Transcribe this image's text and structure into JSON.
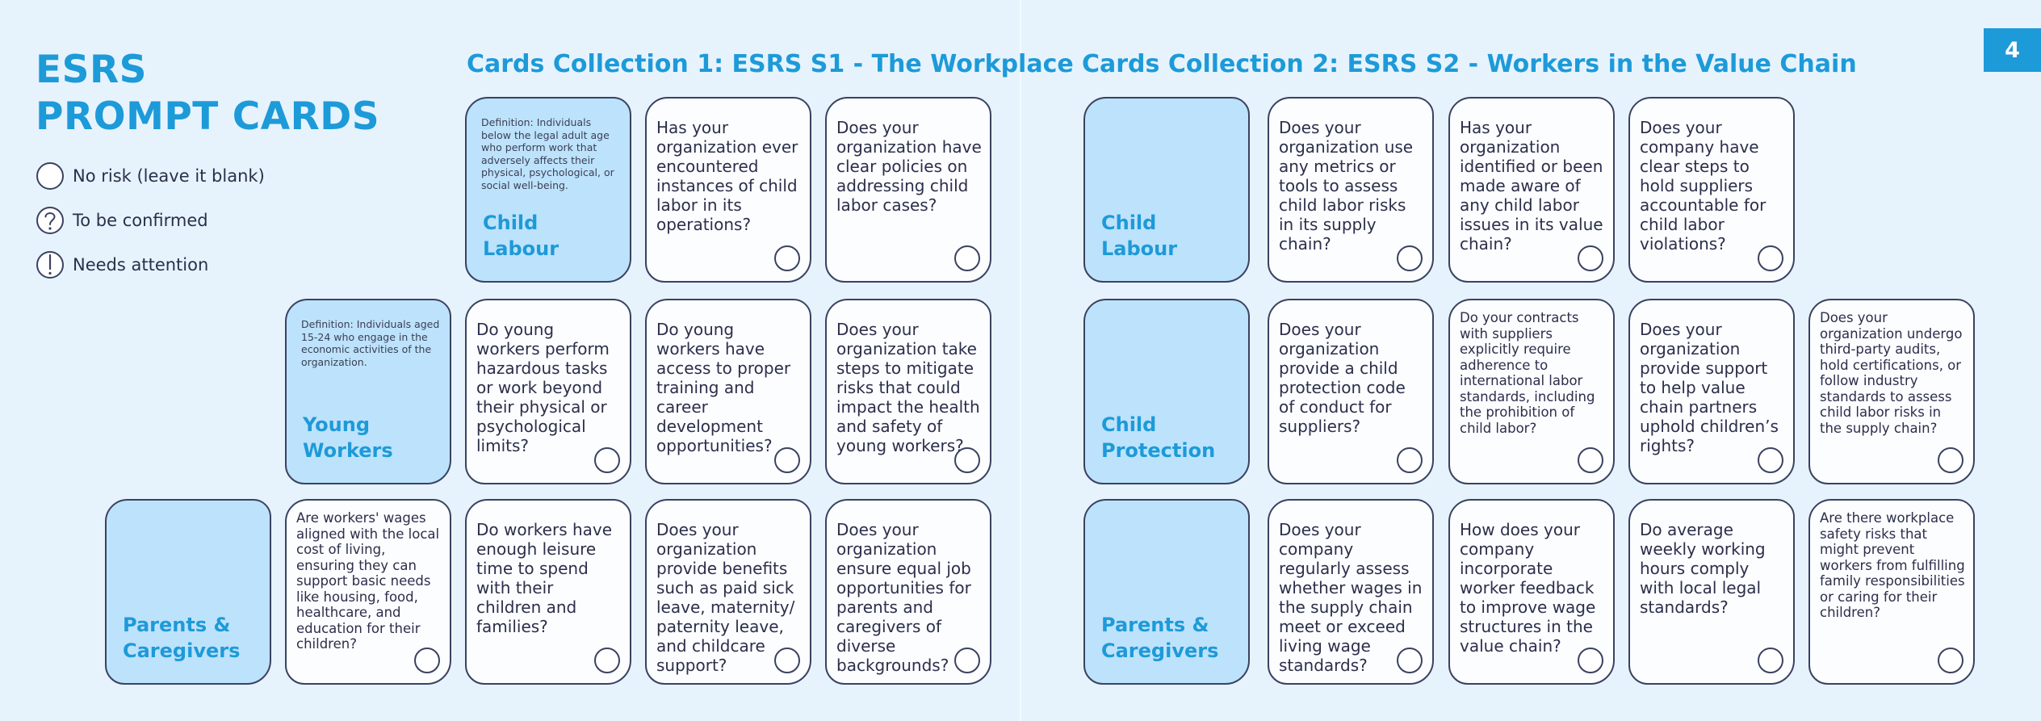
{
  "page_number": "4",
  "title": {
    "line1": "ESRS",
    "line2": "PROMPT CARDS"
  },
  "legend": [
    {
      "icon": "empty-circle-icon",
      "label": "No risk (leave it blank)"
    },
    {
      "icon": "question-circle-icon",
      "label": "To be confirmed"
    },
    {
      "icon": "exclamation-circle-icon",
      "label": "Needs attention"
    }
  ],
  "collection1": {
    "title": "Cards Collection 1: ESRS S1 - The Workplace",
    "rows": [
      {
        "category": "Child\nLabour",
        "definition": "Definition: Individuals below the legal adult age who perform work that adversely affects their physical, psychological, or social well-being.",
        "questions": [
          "Has your organization ever encountered instances of child labor in its operations?",
          "Does your organization have clear policies on addressing child labor cases?"
        ]
      },
      {
        "category": "Young\nWorkers",
        "definition": "Definition: Individuals aged 15-24 who engage in the economic activities of the organization.",
        "questions": [
          "Do young workers perform hazardous tasks or work beyond their physical or psychological limits?",
          "Do young workers have access to proper training and career development opportunities?",
          "Does your organization take steps to mitigate risks that could impact the health and safety of young workers?"
        ]
      },
      {
        "category": "Parents &\nCaregivers",
        "definition": "",
        "questions": [
          "Are workers' wages aligned with the local cost of living, ensuring they can support basic needs like housing, food, healthcare, and education for their children?",
          "Do workers have enough leisure time to spend with their children and families?",
          "Does your organization provide benefits such as paid sick leave, maternity/ paternity leave, and childcare support?",
          "Does your organization ensure equal job opportunities for parents and caregivers of diverse backgrounds?"
        ]
      }
    ]
  },
  "collection2": {
    "title": "Cards Collection 2: ESRS S2 - Workers in the Value Chain",
    "rows": [
      {
        "category": "Child\nLabour",
        "questions": [
          "Does your organization use any metrics or tools to assess child labor risks in its supply chain?",
          "Has your organization identified or been made aware of any child labor issues in its value chain?",
          "Does your company have clear steps to hold suppliers accountable for child labor violations?"
        ]
      },
      {
        "category": "Child\nProtection",
        "questions": [
          "Does your organization provide a child protection code of conduct for suppliers?",
          "Do your contracts with suppliers explicitly require adherence to international labor standards, including the prohibition of child labor?",
          "Does your organization provide support to help value chain partners uphold children’s rights?",
          "Does your organization undergo third-party audits, hold certifications, or follow industry standards to assess child labor risks in the supply chain?"
        ]
      },
      {
        "category": "Parents &\nCaregivers",
        "questions": [
          "Does your company regularly assess whether wages in the supply chain meet or exceed living wage standards?",
          "How does your company incorporate worker feedback to improve wage structures in the value chain?",
          "Do average weekly working hours comply with local legal standards?",
          "Are there workplace safety risks that might prevent workers from fulfilling family responsibilities or caring for their children?"
        ]
      }
    ]
  },
  "colors": {
    "accent": "#1d9ad8",
    "category_fill": "#bde2fb",
    "card_fill": "#fbfdff",
    "background": "#e6f3fd",
    "text": "#2b2f4a"
  }
}
